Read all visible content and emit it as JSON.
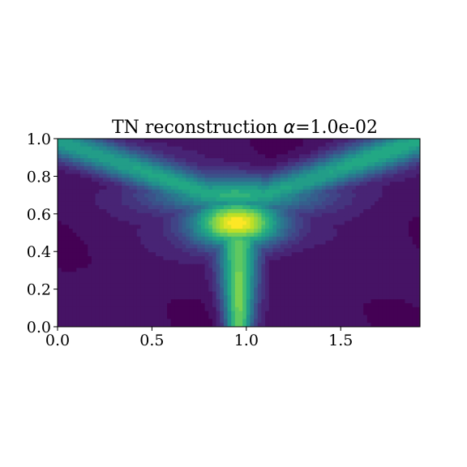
{
  "chart_data": {
    "type": "heatmap",
    "title_prefix": "TN reconstruction ",
    "title_symbol": "α",
    "title_suffix": "=1.0e-02",
    "xlabel": "",
    "ylabel": "",
    "xlim": [
      0.0,
      1.92
    ],
    "ylim": [
      0.0,
      1.0
    ],
    "xticks": [
      0.0,
      0.5,
      1.0,
      1.5
    ],
    "xtick_labels": [
      "0.0",
      "0.5",
      "1.0",
      "1.5"
    ],
    "yticks": [
      0.0,
      0.2,
      0.4,
      0.6,
      0.8,
      1.0
    ],
    "ytick_labels": [
      "0.0",
      "0.2",
      "0.4",
      "0.6",
      "0.8",
      "1.0"
    ],
    "colormap": "viridis",
    "levels": 20,
    "grid": false,
    "features": [
      {
        "kind": "peak",
        "x": 0.95,
        "y": 0.55,
        "value": 1.0
      },
      {
        "kind": "ridge",
        "x_start": 0.0,
        "y_start": 0.99,
        "x_end": 0.8,
        "y_end": 0.7,
        "value": 0.55
      },
      {
        "kind": "ridge",
        "x_start": 1.92,
        "y_start": 0.99,
        "x_end": 1.1,
        "y_end": 0.7,
        "value": 0.55
      },
      {
        "kind": "stem",
        "x": 0.96,
        "y_start": 0.0,
        "y_end": 0.5,
        "value": 0.75
      }
    ]
  }
}
